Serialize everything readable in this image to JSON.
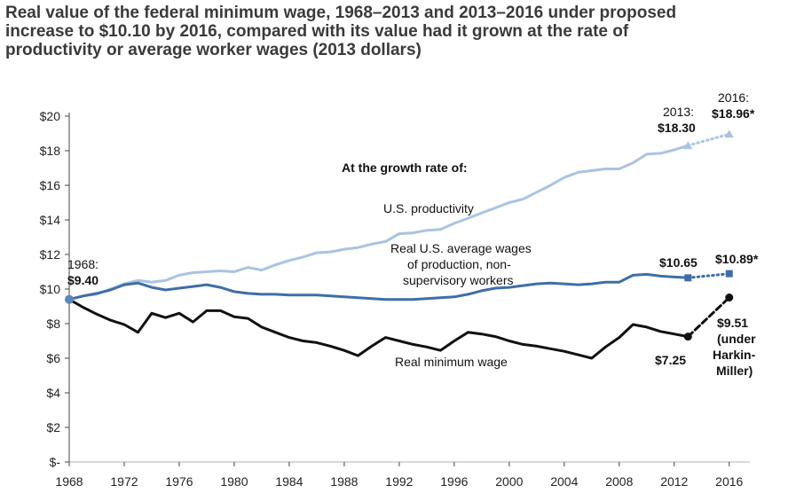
{
  "title_lines": [
    "Real value of the federal minimum wage, 1968–2013 and 2013–2016 under proposed",
    "increase to $10.10 by 2016, compared with its value had it grown at the rate of",
    "productivity or average worker wages (2013 dollars)"
  ],
  "chart_data": {
    "type": "line",
    "title": "Real value of the federal minimum wage, 1968–2013 and 2013–2016 under proposed increase to $10.10 by 2016, compared with its value had it grown at the rate of productivity or average worker wages (2013 dollars)",
    "xlabel": "",
    "ylabel": "",
    "xlim": [
      1968,
      2017.5
    ],
    "ylim": [
      0,
      20
    ],
    "y_ticks": [
      {
        "value": 0,
        "label": "$-"
      },
      {
        "value": 2,
        "label": "$2"
      },
      {
        "value": 4,
        "label": "$4"
      },
      {
        "value": 6,
        "label": "$6"
      },
      {
        "value": 8,
        "label": "$8"
      },
      {
        "value": 10,
        "label": "$10"
      },
      {
        "value": 12,
        "label": "$12"
      },
      {
        "value": 14,
        "label": "$14"
      },
      {
        "value": 16,
        "label": "$16"
      },
      {
        "value": 18,
        "label": "$18"
      },
      {
        "value": 20,
        "label": "$20"
      }
    ],
    "x_ticks": [
      {
        "value": 1968,
        "label": "1968"
      },
      {
        "value": 1972,
        "label": "1972"
      },
      {
        "value": 1976,
        "label": "1976"
      },
      {
        "value": 1980,
        "label": "1980"
      },
      {
        "value": 1984,
        "label": "1984"
      },
      {
        "value": 1988,
        "label": "1988"
      },
      {
        "value": 1992,
        "label": "1992"
      },
      {
        "value": 1996,
        "label": "1996"
      },
      {
        "value": 2000,
        "label": "2000"
      },
      {
        "value": 2004,
        "label": "2004"
      },
      {
        "value": 2008,
        "label": "2008"
      },
      {
        "value": 2012,
        "label": "2012"
      },
      {
        "value": 2016,
        "label": "2016"
      }
    ],
    "series": [
      {
        "key": "productivity",
        "name": "U.S. productivity",
        "color": "#a9c4e2",
        "x": [
          1968,
          1969,
          1970,
          1971,
          1972,
          1973,
          1974,
          1975,
          1976,
          1977,
          1978,
          1979,
          1980,
          1981,
          1982,
          1983,
          1984,
          1985,
          1986,
          1987,
          1988,
          1989,
          1990,
          1991,
          1992,
          1993,
          1994,
          1995,
          1996,
          1997,
          1998,
          1999,
          2000,
          2001,
          2002,
          2003,
          2004,
          2005,
          2006,
          2007,
          2008,
          2009,
          2010,
          2011,
          2012,
          2013
        ],
        "y": [
          9.4,
          9.6,
          9.7,
          10.0,
          10.3,
          10.5,
          10.4,
          10.5,
          10.8,
          10.95,
          11.0,
          11.05,
          11.0,
          11.25,
          11.1,
          11.4,
          11.65,
          11.85,
          12.1,
          12.15,
          12.3,
          12.4,
          12.6,
          12.75,
          13.2,
          13.25,
          13.4,
          13.45,
          13.8,
          14.1,
          14.4,
          14.7,
          15.0,
          15.2,
          15.6,
          16.0,
          16.45,
          16.75,
          16.85,
          16.95,
          16.95,
          17.3,
          17.8,
          17.85,
          18.05,
          18.3
        ],
        "proj_x": [
          2013,
          2016
        ],
        "proj_y": [
          18.3,
          18.96
        ],
        "marker": "triangle"
      },
      {
        "key": "avgwages",
        "name": "Real U.S. average wages of production, non-supervisory workers",
        "color": "#3e6ea8",
        "x": [
          1968,
          1969,
          1970,
          1971,
          1972,
          1973,
          1974,
          1975,
          1976,
          1977,
          1978,
          1979,
          1980,
          1981,
          1982,
          1983,
          1984,
          1985,
          1986,
          1987,
          1988,
          1989,
          1990,
          1991,
          1992,
          1993,
          1994,
          1995,
          1996,
          1997,
          1998,
          1999,
          2000,
          2001,
          2002,
          2003,
          2004,
          2005,
          2006,
          2007,
          2008,
          2009,
          2010,
          2011,
          2012,
          2013
        ],
        "y": [
          9.4,
          9.6,
          9.75,
          9.95,
          10.25,
          10.35,
          10.1,
          9.95,
          10.05,
          10.15,
          10.25,
          10.1,
          9.85,
          9.75,
          9.7,
          9.7,
          9.65,
          9.65,
          9.65,
          9.6,
          9.55,
          9.5,
          9.45,
          9.4,
          9.4,
          9.4,
          9.45,
          9.5,
          9.55,
          9.7,
          9.9,
          10.05,
          10.1,
          10.2,
          10.3,
          10.35,
          10.3,
          10.25,
          10.3,
          10.4,
          10.4,
          10.8,
          10.85,
          10.75,
          10.7,
          10.65
        ],
        "proj_x": [
          2013,
          2016
        ],
        "proj_y": [
          10.65,
          10.89
        ],
        "marker": "square"
      },
      {
        "key": "minwage",
        "name": "Real minimum wage",
        "color": "#111111",
        "x": [
          1968,
          1969,
          1970,
          1971,
          1972,
          1973,
          1974,
          1975,
          1976,
          1977,
          1978,
          1979,
          1980,
          1981,
          1982,
          1983,
          1984,
          1985,
          1986,
          1987,
          1988,
          1989,
          1990,
          1991,
          1992,
          1993,
          1994,
          1995,
          1996,
          1997,
          1998,
          1999,
          2000,
          2001,
          2002,
          2003,
          2004,
          2005,
          2006,
          2007,
          2008,
          2009,
          2010,
          2011,
          2012,
          2013
        ],
        "y": [
          9.4,
          8.95,
          8.55,
          8.2,
          7.95,
          7.5,
          8.6,
          8.35,
          8.6,
          8.1,
          8.75,
          8.75,
          8.4,
          8.3,
          7.8,
          7.5,
          7.2,
          7.0,
          6.9,
          6.7,
          6.45,
          6.15,
          6.7,
          7.2,
          7.0,
          6.8,
          6.65,
          6.45,
          7.0,
          7.5,
          7.4,
          7.25,
          7.0,
          6.8,
          6.7,
          6.55,
          6.4,
          6.2,
          6.0,
          6.65,
          7.2,
          7.95,
          7.8,
          7.55,
          7.4,
          7.25
        ],
        "proj_x": [
          2013,
          2016
        ],
        "proj_y": [
          7.25,
          9.51
        ],
        "marker": "circle"
      }
    ],
    "annotations": {
      "growth_rate_heading": "At the growth rate of:",
      "productivity_label": "U.S. productivity",
      "avgwages_label_lines": [
        "Real U.S. average wages",
        "of production, non-",
        "supervisory workers"
      ],
      "minwage_label": "Real minimum wage",
      "start_year_label": "1968:",
      "start_value_label": "$9.40",
      "prod_2013_year": "2013:",
      "prod_2013_value": "$18.30",
      "prod_2016_year": "2016:",
      "prod_2016_value": "$18.96*",
      "avg_2013_value": "$10.65",
      "avg_2016_value": "$10.89*",
      "min_2013_value": "$7.25",
      "min_2016_lines": [
        "$9.51",
        "(under",
        "Harkin-",
        "Miller)"
      ]
    }
  }
}
